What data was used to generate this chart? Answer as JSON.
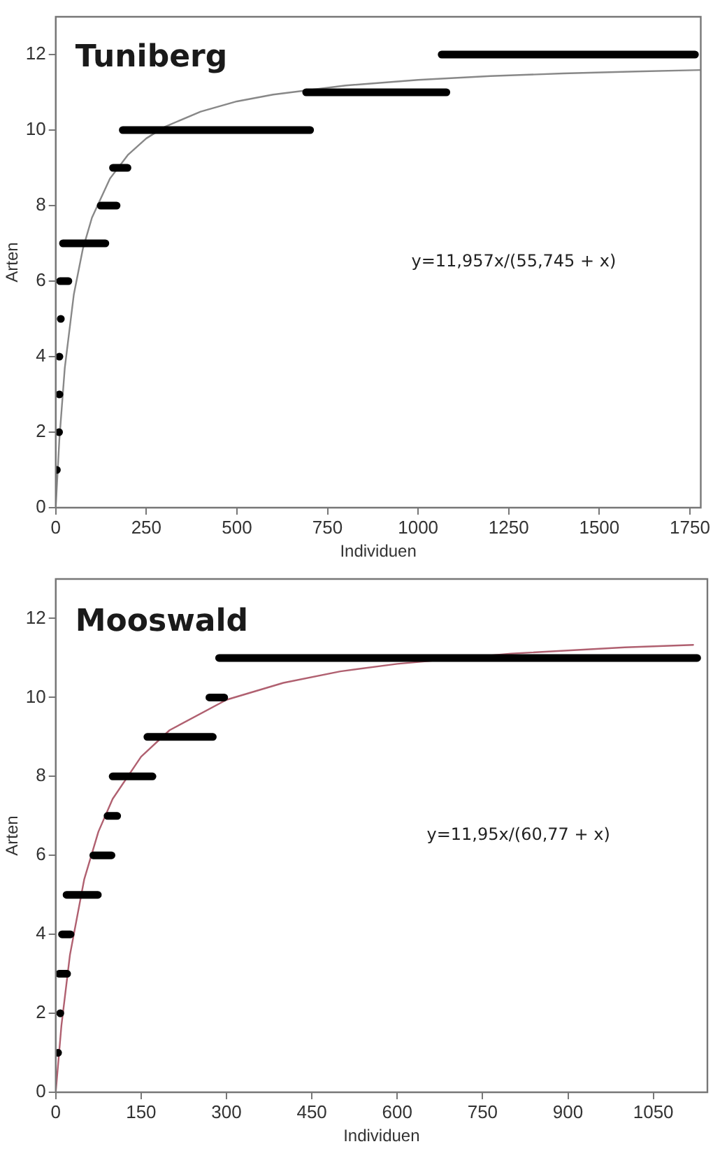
{
  "chart_data": [
    {
      "type": "line",
      "title": "Tuniberg",
      "xlabel": "Individuen",
      "ylabel": "Arten",
      "xlim": [
        0,
        1780
      ],
      "ylim": [
        0,
        13
      ],
      "xticks": [
        0,
        250,
        500,
        750,
        1000,
        1250,
        1500,
        1750
      ],
      "yticks": [
        0,
        2,
        4,
        6,
        8,
        10,
        12
      ],
      "grid": false,
      "legend": false,
      "line_style": "solid",
      "annotations": [
        "y=11,957x/(55,745 + x)"
      ],
      "series": [
        {
          "type": "scatter",
          "color": "#000000",
          "x": [
            3,
            9,
            10,
            10,
            14
          ],
          "values": [
            1,
            2,
            3,
            4,
            5
          ]
        },
        {
          "color": "#000000",
          "x": [
            12,
            35,
            null,
            20,
            137,
            null,
            124,
            168,
            null,
            158,
            198,
            null,
            185,
            702,
            null,
            691,
            1078,
            null,
            1065,
            1764
          ],
          "values": [
            6,
            6,
            null,
            7,
            7,
            null,
            8,
            8,
            null,
            9,
            9,
            null,
            10,
            10,
            null,
            11,
            11,
            null,
            12,
            12
          ]
        },
        {
          "color": "#888888",
          "x": [
            0,
            10,
            25,
            50,
            75,
            100,
            150,
            200,
            250,
            300,
            400,
            500,
            600,
            800,
            1000,
            1200,
            1400,
            1600,
            1780
          ],
          "values": [
            0,
            1.8,
            3.7,
            5.65,
            6.86,
            7.68,
            8.72,
            9.35,
            9.78,
            10.08,
            10.49,
            10.76,
            10.94,
            11.18,
            11.33,
            11.43,
            11.5,
            11.55,
            11.59
          ]
        }
      ]
    },
    {
      "type": "line",
      "title": "Mooswald",
      "xlabel": "Individuen",
      "ylabel": "Arten",
      "xlim": [
        0,
        1145
      ],
      "ylim": [
        0,
        13
      ],
      "xticks": [
        0,
        150,
        300,
        450,
        600,
        750,
        900,
        1050
      ],
      "yticks": [
        0,
        2,
        4,
        6,
        8,
        10,
        12
      ],
      "grid": false,
      "legend": false,
      "line_style": "solid",
      "annotations": [
        "y=11,95x/(60,77 + x)"
      ],
      "series": [
        {
          "type": "scatter",
          "color": "#000000",
          "x": [
            4,
            8
          ],
          "values": [
            1,
            2
          ]
        },
        {
          "color": "#000000",
          "x": [
            6,
            20,
            null,
            11,
            26,
            null,
            19,
            74,
            null,
            66,
            98,
            null,
            91,
            108,
            null,
            100,
            170,
            null,
            161,
            276,
            null,
            270,
            296,
            null,
            287,
            1127
          ],
          "values": [
            3,
            3,
            null,
            4,
            4,
            null,
            5,
            5,
            null,
            6,
            6,
            null,
            7,
            7,
            null,
            8,
            8,
            null,
            9,
            9,
            null,
            10,
            10,
            null,
            11,
            11
          ]
        },
        {
          "color": "#b06070",
          "x": [
            0,
            10,
            25,
            50,
            75,
            100,
            150,
            200,
            300,
            400,
            500,
            600,
            800,
            1000,
            1120
          ],
          "values": [
            0,
            1.69,
            3.48,
            5.39,
            6.6,
            7.43,
            8.5,
            9.17,
            9.94,
            10.37,
            10.66,
            10.85,
            11.11,
            11.27,
            11.33
          ]
        }
      ]
    }
  ]
}
